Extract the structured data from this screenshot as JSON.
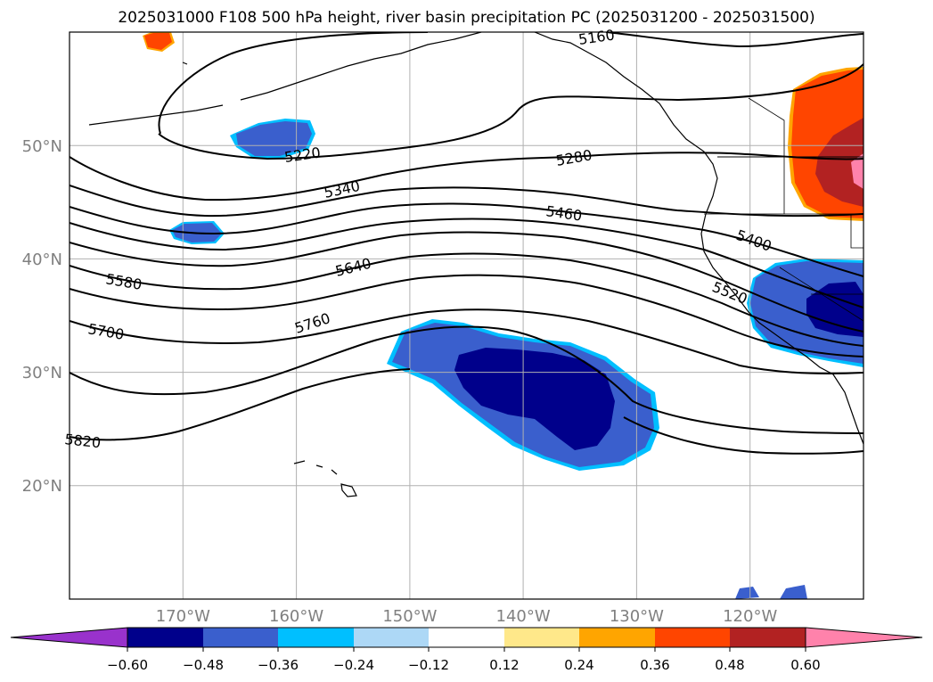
{
  "title": "2025031000 F108 500 hPa height, river basin precipitation PC (2025031200 - 2025031500)",
  "map": {
    "projection": "equirectangular",
    "lon_range": [
      -180,
      -110
    ],
    "lat_range": [
      10,
      60
    ],
    "lon_ticks": [
      {
        "value": -170,
        "label": "170°W"
      },
      {
        "value": -160,
        "label": "160°W"
      },
      {
        "value": -150,
        "label": "150°W"
      },
      {
        "value": -140,
        "label": "140°W"
      },
      {
        "value": -130,
        "label": "130°W"
      },
      {
        "value": -120,
        "label": "120°W"
      }
    ],
    "lat_ticks": [
      {
        "value": 20,
        "label": "20°N"
      },
      {
        "value": 30,
        "label": "30°N"
      },
      {
        "value": 40,
        "label": "40°N"
      },
      {
        "value": 50,
        "label": "50°N"
      }
    ],
    "grid": true,
    "contour_labels": [
      "5160",
      "5220",
      "5280",
      "5340",
      "5400",
      "5460",
      "5520",
      "5580",
      "5640",
      "5700",
      "5760",
      "5820"
    ]
  },
  "colorbar": {
    "ticks": [
      "−0.60",
      "−0.48",
      "−0.36",
      "−0.24",
      "−0.12",
      "0.12",
      "0.24",
      "0.36",
      "0.48",
      "0.60"
    ],
    "colors": [
      "#9932cc",
      "#00008b",
      "#3a5fcd",
      "#00bfff",
      "#add8f6",
      "#ffffff",
      "#ffe88a",
      "#ffa500",
      "#ff4500",
      "#b22222",
      "#ff82ab"
    ],
    "extend": "both"
  }
}
